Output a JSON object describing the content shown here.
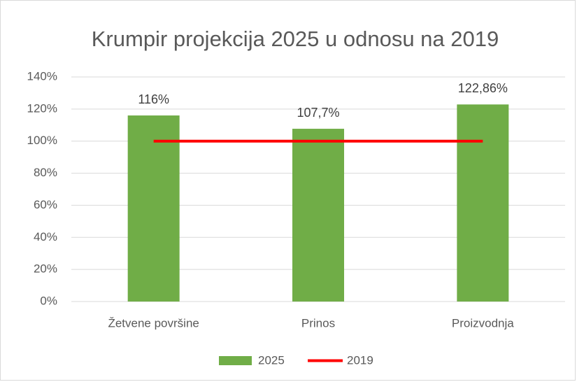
{
  "chart_data": {
    "type": "bar",
    "title": "Krumpir projekcija 2025 u odnosu na 2019",
    "categories": [
      "Žetvene površine",
      "Prinos",
      "Proizvodnja"
    ],
    "series": [
      {
        "name": "2025",
        "type": "bar",
        "color": "#70ad47",
        "values": [
          116,
          107.7,
          122.86
        ],
        "value_labels": [
          "116%",
          "107,7%",
          "122,86%"
        ]
      },
      {
        "name": "2019",
        "type": "line",
        "color": "#ff0000",
        "values": [
          100,
          100,
          100
        ]
      }
    ],
    "ylim": [
      0,
      140
    ],
    "yticks": [
      {
        "value": 0,
        "label": "0%"
      },
      {
        "value": 20,
        "label": "20%"
      },
      {
        "value": 40,
        "label": "40%"
      },
      {
        "value": 60,
        "label": "60%"
      },
      {
        "value": 80,
        "label": "80%"
      },
      {
        "value": 100,
        "label": "100%"
      },
      {
        "value": 120,
        "label": "120%"
      },
      {
        "value": 140,
        "label": "140%"
      }
    ],
    "grid": true,
    "legend": "bottom"
  }
}
